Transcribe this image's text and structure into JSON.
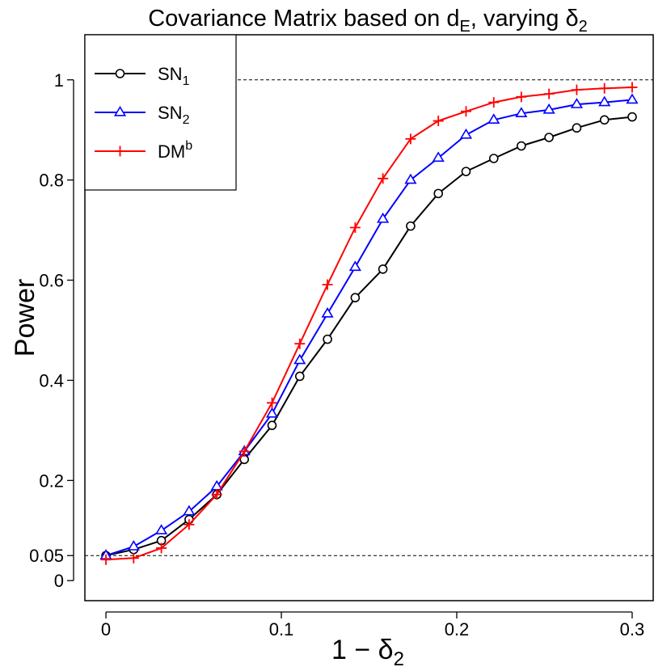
{
  "chart_data": {
    "type": "line",
    "title": {
      "main": "Covariance Matrix based on d",
      "main_sub": "E",
      "tail": ", varying δ",
      "tail_sub": "2"
    },
    "xlabel": {
      "main": "1 − δ",
      "sub": "2"
    },
    "ylabel": "Power",
    "xlim": [
      -0.012,
      0.312
    ],
    "ylim": [
      -0.04,
      1.09
    ],
    "x_ticks": [
      {
        "value": 0,
        "label": "0"
      },
      {
        "value": 0.1,
        "label": "0.1"
      },
      {
        "value": 0.2,
        "label": "0.2"
      },
      {
        "value": 0.3,
        "label": "0.3"
      }
    ],
    "y_ticks": [
      {
        "value": 0,
        "label": "0"
      },
      {
        "value": 0.05,
        "label": "0.05"
      },
      {
        "value": 0.2,
        "label": "0.2"
      },
      {
        "value": 0.4,
        "label": "0.4"
      },
      {
        "value": 0.6,
        "label": "0.6"
      },
      {
        "value": 0.8,
        "label": "0.8"
      },
      {
        "value": 1,
        "label": "1"
      }
    ],
    "reference_lines": [
      {
        "y": 1.0,
        "style": "dashed"
      },
      {
        "y": 0.05,
        "style": "dashed"
      }
    ],
    "legend_position": "top-left",
    "x": [
      0,
      0.0158,
      0.0316,
      0.0474,
      0.0632,
      0.0789,
      0.0947,
      0.1105,
      0.1263,
      0.1421,
      0.1579,
      0.1737,
      0.1895,
      0.2053,
      0.2211,
      0.2368,
      0.2526,
      0.2684,
      0.2842,
      0.3
    ],
    "series": [
      {
        "name": "SN",
        "name_sub": "1",
        "name_sub_type": "subscript",
        "color": "#000000",
        "marker": "circle",
        "values": [
          0.05,
          0.062,
          0.08,
          0.122,
          0.172,
          0.242,
          0.31,
          0.408,
          0.482,
          0.565,
          0.622,
          0.708,
          0.773,
          0.817,
          0.843,
          0.868,
          0.885,
          0.904,
          0.92,
          0.926
        ]
      },
      {
        "name": "SN",
        "name_sub": "2",
        "name_sub_type": "subscript",
        "color": "#0000ff",
        "marker": "triangle",
        "values": [
          0.05,
          0.068,
          0.1,
          0.138,
          0.188,
          0.258,
          0.333,
          0.44,
          0.533,
          0.626,
          0.722,
          0.8,
          0.844,
          0.89,
          0.92,
          0.933,
          0.94,
          0.951,
          0.955,
          0.96
        ]
      },
      {
        "name": "DM",
        "name_sub": "b",
        "name_sub_type": "superscript",
        "color": "#ff0000",
        "marker": "plus",
        "values": [
          0.042,
          0.045,
          0.065,
          0.112,
          0.172,
          0.258,
          0.355,
          0.473,
          0.591,
          0.705,
          0.803,
          0.882,
          0.918,
          0.937,
          0.955,
          0.966,
          0.972,
          0.98,
          0.983,
          0.985
        ]
      }
    ]
  }
}
